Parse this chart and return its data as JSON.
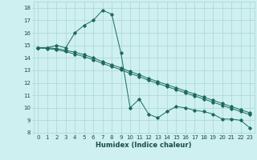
{
  "xlabel": "Humidex (Indice chaleur)",
  "bg_color": "#cff0f0",
  "grid_color": "#aad4d4",
  "line_color": "#1a6b5a",
  "xlim": [
    -0.5,
    23.5
  ],
  "ylim": [
    8,
    18.5
  ],
  "yticks": [
    8,
    9,
    10,
    11,
    12,
    13,
    14,
    15,
    16,
    17,
    18
  ],
  "xticks": [
    0,
    1,
    2,
    3,
    4,
    5,
    6,
    7,
    8,
    9,
    10,
    11,
    12,
    13,
    14,
    15,
    16,
    17,
    18,
    19,
    20,
    21,
    22,
    23
  ],
  "series1_x": [
    0,
    1,
    2,
    3,
    4,
    5,
    6,
    7,
    8,
    9,
    10,
    11,
    12,
    13,
    14,
    15,
    16,
    17,
    18,
    19,
    20,
    21,
    22,
    23
  ],
  "series1_y": [
    14.8,
    14.8,
    15.0,
    14.8,
    16.0,
    16.6,
    17.0,
    17.8,
    17.5,
    14.4,
    10.0,
    10.7,
    9.5,
    9.2,
    9.7,
    10.1,
    10.0,
    9.8,
    9.7,
    9.5,
    9.1,
    9.1,
    9.0,
    8.4
  ],
  "series2_x": [
    0,
    1,
    2,
    3,
    4,
    5,
    6,
    7,
    8,
    9,
    10,
    11,
    12,
    13,
    14,
    15,
    16,
    17,
    18,
    19,
    20,
    21,
    22,
    23
  ],
  "series2_y": [
    14.8,
    14.75,
    14.65,
    14.5,
    14.3,
    14.1,
    13.85,
    13.55,
    13.3,
    13.05,
    12.75,
    12.5,
    12.2,
    11.95,
    11.7,
    11.45,
    11.2,
    10.95,
    10.7,
    10.45,
    10.2,
    9.95,
    9.7,
    9.45
  ],
  "series3_x": [
    0,
    1,
    2,
    3,
    4,
    5,
    6,
    7,
    8,
    9,
    10,
    11,
    12,
    13,
    14,
    15,
    16,
    17,
    18,
    19,
    20,
    21,
    22,
    23
  ],
  "series3_y": [
    14.8,
    14.8,
    14.75,
    14.6,
    14.45,
    14.25,
    14.0,
    13.7,
    13.45,
    13.2,
    12.9,
    12.65,
    12.35,
    12.1,
    11.85,
    11.6,
    11.35,
    11.1,
    10.85,
    10.6,
    10.35,
    10.1,
    9.85,
    9.6
  ],
  "xlabel_fontsize": 6,
  "tick_fontsize": 5
}
